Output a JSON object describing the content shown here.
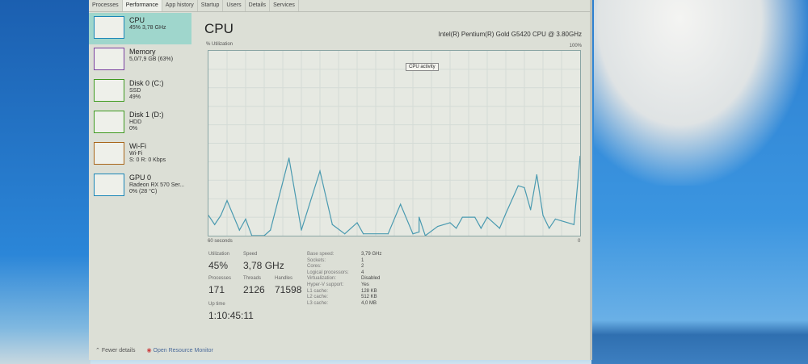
{
  "tabs": [
    "Processes",
    "Performance",
    "App history",
    "Startup",
    "Users",
    "Details",
    "Services"
  ],
  "sidebar": [
    {
      "title": "CPU",
      "l1": "45% 3,78 GHz",
      "l2": "",
      "color": "#1a86b8"
    },
    {
      "title": "Memory",
      "l1": "5,0/7,9 GB (63%)",
      "l2": "",
      "color": "#7a3fa0"
    },
    {
      "title": "Disk 0 (C:)",
      "l1": "SSD",
      "l2": "49%",
      "color": "#3f9a20"
    },
    {
      "title": "Disk 1 (D:)",
      "l1": "HDD",
      "l2": "0%",
      "color": "#3f9a20"
    },
    {
      "title": "Wi-Fi",
      "l1": "Wi-Fi",
      "l2": "S: 0 R: 0 Kbps",
      "color": "#a8651a"
    },
    {
      "title": "GPU 0",
      "l1": "Radeon RX 570 Ser...",
      "l2": "0% (28 °C)",
      "color": "#1a86b8"
    }
  ],
  "main": {
    "title": "CPU",
    "cpu_name": "Intel(R) Pentium(R) Gold G5420 CPU @ 3.80GHz",
    "util_label": "% Utilization",
    "max_label": "100%",
    "tooltip": "CPU activity",
    "axis_left": "60 seconds",
    "axis_right": "0",
    "stats": {
      "utilization_label": "Utilization",
      "utilization": "45%",
      "speed_label": "Speed",
      "speed": "3,78 GHz",
      "processes_label": "Processes",
      "processes": "171",
      "threads_label": "Threads",
      "threads": "2126",
      "handles_label": "Handles",
      "handles": "71598",
      "uptime_label": "Up time",
      "uptime": "1:10:45:11"
    },
    "details": [
      [
        "Base speed:",
        "3,79 GHz"
      ],
      [
        "Sockets:",
        "1"
      ],
      [
        "Cores:",
        "2"
      ],
      [
        "Logical processors:",
        "4"
      ],
      [
        "Virtualization:",
        "Disabled"
      ],
      [
        "Hyper-V support:",
        "Yes"
      ],
      [
        "L1 cache:",
        "128 KB"
      ],
      [
        "L2 cache:",
        "512 KB"
      ],
      [
        "L3 cache:",
        "4,0 MB"
      ]
    ]
  },
  "footer": {
    "fewer": "Fewer details",
    "monitor": "Open Resource Monitor"
  },
  "chart_data": {
    "type": "line",
    "xlabel": "60 seconds",
    "ylabel": "% Utilization",
    "xlim": [
      60,
      0
    ],
    "ylim": [
      0,
      100
    ],
    "color": "#4a9ab0",
    "seconds_ago": [
      60,
      59,
      58,
      57,
      55,
      54,
      53,
      51,
      50,
      47,
      45,
      42,
      40,
      38,
      36,
      35,
      31,
      29,
      27,
      26,
      26,
      25,
      23,
      21,
      20,
      19,
      17,
      16,
      15,
      13,
      12,
      10,
      9,
      8,
      7,
      6,
      5,
      4,
      1,
      0
    ],
    "values": [
      11,
      6,
      11,
      19,
      3,
      9,
      0,
      0,
      3,
      42,
      3,
      35,
      6,
      1,
      7,
      1,
      1,
      17,
      1,
      2,
      10,
      0,
      5,
      7,
      4,
      10,
      10,
      4,
      10,
      4,
      12,
      27,
      26,
      14,
      33,
      11,
      4,
      9,
      6,
      43
    ]
  }
}
